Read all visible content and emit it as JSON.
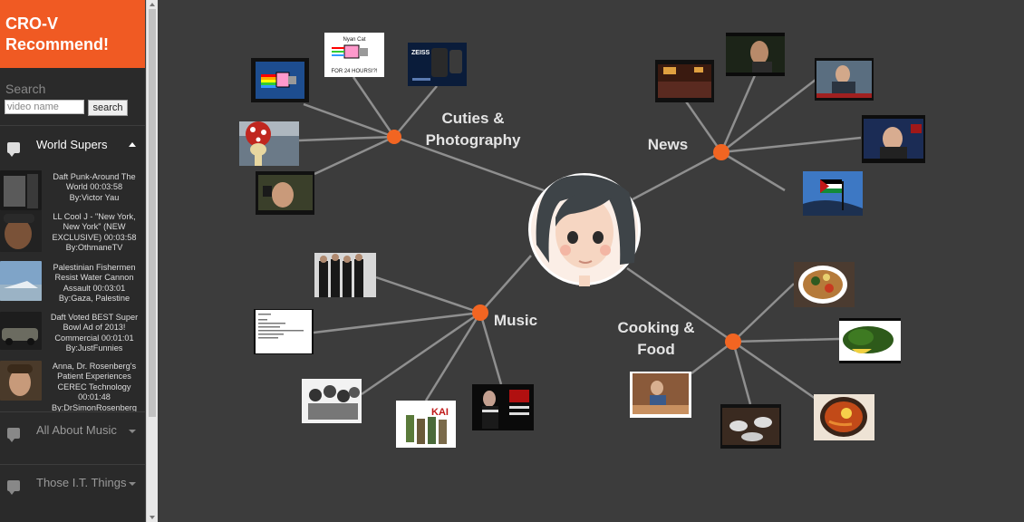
{
  "app": {
    "title": "CRO-V Recommend!"
  },
  "search": {
    "label": "Search",
    "placeholder": "video name",
    "button": "search"
  },
  "sidebar": {
    "groups": [
      {
        "label": "World Supers",
        "expanded": true
      },
      {
        "label": "All About Music",
        "expanded": false
      },
      {
        "label": "Those I.T. Things",
        "expanded": false
      }
    ],
    "videos": [
      {
        "title": "Daft Punk-Around The World 00:03:58",
        "by": "By:Victor Yau"
      },
      {
        "title": "LL Cool J - \"New York, New York\" (NEW EXCLUSIVE) 00:03:58",
        "by": "By:OthmaneTV"
      },
      {
        "title": "Palestinian Fishermen Resist Water Cannon Assault 00:03:01",
        "by": "By:Gaza, Palestine"
      },
      {
        "title": "Daft Voted BEST Super Bowl Ad of 2013! Commercial 00:01:01",
        "by": "By:JustFunnies"
      },
      {
        "title": "Anna, Dr. Rosenberg's Patient Experiences CEREC Technology 00:01:48",
        "by": "By:DrSimonRosenberg"
      }
    ]
  },
  "graph": {
    "categories": [
      {
        "id": "cuties",
        "label": "Cuties & Photography"
      },
      {
        "id": "news",
        "label": "News"
      },
      {
        "id": "music",
        "label": "Music"
      },
      {
        "id": "cooking",
        "label": "Cooking & Food"
      }
    ],
    "thumbnail_text": {
      "nyan_title": "Nyan Cat",
      "nyan_caption": "FOR 24 HOURS!?!",
      "zeiss": "ZEISS",
      "kai": "KAI"
    }
  },
  "colors": {
    "accent": "#f05a23",
    "node": "#f26522",
    "edge": "#8f8f8f",
    "background": "#3c3c3c",
    "sidebar": "#2a2a2a"
  }
}
